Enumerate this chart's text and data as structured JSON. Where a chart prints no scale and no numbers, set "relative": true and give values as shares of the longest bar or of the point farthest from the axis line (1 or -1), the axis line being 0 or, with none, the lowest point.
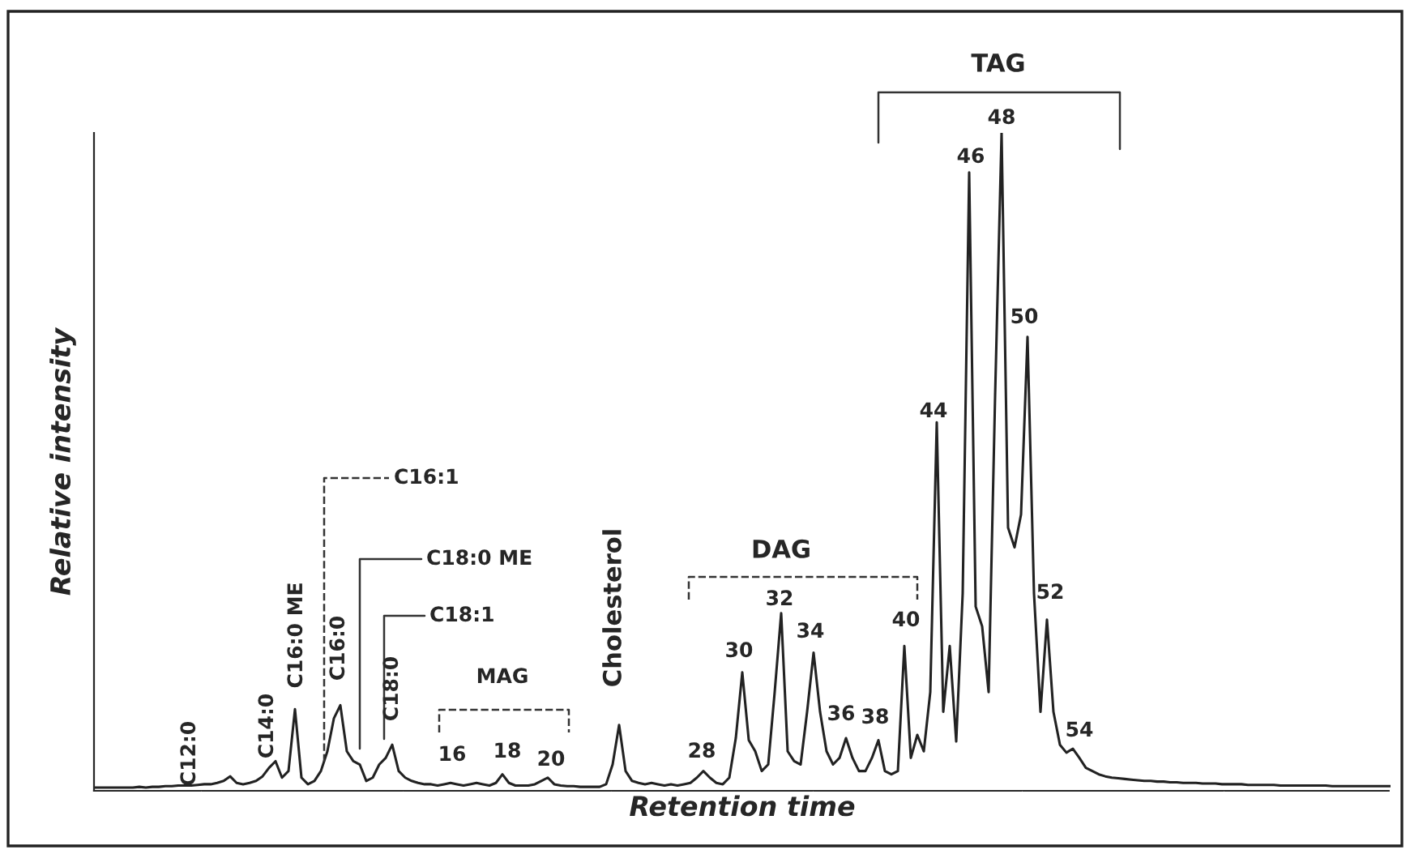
{
  "chart_data": {
    "type": "line",
    "relative": true,
    "xlabel": "Retention time",
    "ylabel": "Relative intensity",
    "color": "#222222",
    "categories": [
      null,
      null,
      null,
      null,
      null,
      null,
      null,
      null,
      null,
      null,
      null,
      null,
      null,
      null,
      null,
      null,
      null,
      null,
      null,
      null,
      null,
      null,
      null,
      null,
      null,
      null,
      null,
      null,
      null,
      null,
      null,
      null,
      null,
      null,
      null,
      null,
      null,
      null,
      null,
      null,
      null,
      null,
      null,
      null,
      null,
      null,
      null,
      null,
      null,
      null,
      null,
      null,
      null,
      null,
      null,
      null,
      null,
      null,
      null,
      null,
      null,
      null,
      null,
      null,
      null,
      null,
      null,
      null,
      null,
      null,
      null,
      null,
      null,
      null,
      null,
      null,
      null,
      null,
      null,
      null,
      null,
      null,
      null,
      null,
      null,
      null,
      null,
      null,
      null,
      null,
      null,
      null,
      null,
      null,
      null,
      null,
      null,
      null,
      null,
      null,
      null,
      null,
      null,
      null,
      null,
      null,
      null,
      null,
      null,
      null,
      null,
      null,
      null,
      null,
      null,
      null,
      null,
      null,
      null,
      null,
      null,
      null,
      null,
      null,
      null,
      null,
      null,
      null,
      null,
      null,
      null,
      null,
      null,
      null,
      null,
      null,
      null,
      null,
      null,
      null,
      null,
      null,
      null,
      null,
      null,
      null,
      null,
      null,
      null,
      null,
      null,
      null,
      null,
      null,
      null,
      null,
      null,
      null,
      null,
      null,
      null,
      null,
      null,
      null,
      null,
      null,
      null,
      null,
      null,
      null,
      null,
      null,
      null,
      null,
      null,
      null,
      null,
      null,
      null,
      null,
      null,
      null,
      null,
      null,
      null,
      null,
      null,
      null,
      null,
      null,
      null,
      null,
      null,
      null,
      null,
      null,
      null,
      null,
      null,
      null,
      null
    ],
    "values": [
      0.005,
      0.005,
      0.005,
      0.005,
      0.005,
      0.005,
      0.005,
      0.006,
      0.005,
      0.006,
      0.006,
      0.007,
      0.007,
      0.008,
      0.008,
      0.008,
      0.009,
      0.01,
      0.01,
      0.012,
      0.015,
      0.022,
      0.012,
      0.01,
      0.012,
      0.015,
      0.022,
      0.035,
      0.045,
      0.02,
      0.03,
      0.124,
      0.02,
      0.01,
      0.015,
      0.03,
      0.06,
      0.11,
      0.13,
      0.06,
      0.045,
      0.04,
      0.015,
      0.02,
      0.04,
      0.05,
      0.07,
      0.03,
      0.02,
      0.015,
      0.012,
      0.01,
      0.01,
      0.008,
      0.01,
      0.012,
      0.01,
      0.008,
      0.01,
      0.012,
      0.01,
      0.008,
      0.012,
      0.025,
      0.012,
      0.008,
      0.008,
      0.008,
      0.01,
      0.015,
      0.02,
      0.01,
      0.008,
      0.007,
      0.007,
      0.006,
      0.006,
      0.006,
      0.006,
      0.01,
      0.04,
      0.1,
      0.03,
      0.015,
      0.012,
      0.01,
      0.012,
      0.01,
      0.008,
      0.01,
      0.008,
      0.01,
      0.012,
      0.02,
      0.03,
      0.02,
      0.012,
      0.01,
      0.02,
      0.08,
      0.18,
      0.077,
      0.06,
      0.03,
      0.04,
      0.15,
      0.27,
      0.06,
      0.045,
      0.04,
      0.12,
      0.21,
      0.12,
      0.06,
      0.04,
      0.05,
      0.08,
      0.05,
      0.03,
      0.03,
      0.05,
      0.077,
      0.03,
      0.025,
      0.03,
      0.22,
      0.05,
      0.085,
      0.06,
      0.15,
      0.56,
      0.12,
      0.22,
      0.075,
      0.3,
      0.94,
      0.28,
      0.25,
      0.15,
      0.6,
      1.0,
      0.4,
      0.37,
      0.42,
      0.69,
      0.3,
      0.12,
      0.26,
      0.12,
      0.07,
      0.058,
      0.064,
      0.05,
      0.035,
      0.03,
      0.025,
      0.022,
      0.02,
      0.019,
      0.018,
      0.017,
      0.016,
      0.015,
      0.015,
      0.014,
      0.014,
      0.013,
      0.013,
      0.012,
      0.012,
      0.012,
      0.011,
      0.011,
      0.011,
      0.01,
      0.01,
      0.01,
      0.01,
      0.009,
      0.009,
      0.009,
      0.009,
      0.009,
      0.008,
      0.008,
      0.008,
      0.008,
      0.008,
      0.008,
      0.008,
      0.008,
      0.007,
      0.007,
      0.007,
      0.007,
      0.007,
      0.007,
      0.007,
      0.007,
      0.007,
      0.007
    ],
    "annotations": [
      "C12:0",
      "C14:0",
      "C16:0 ME",
      "C16:1",
      "C16:0",
      "C18:0 ME",
      "C18:1",
      "C18:0",
      "MAG",
      "16",
      "18",
      "20",
      "Cholesterol",
      "DAG",
      "28",
      "30",
      "32",
      "34",
      "36",
      "38",
      "40",
      "TAG",
      "44",
      "46",
      "48",
      "50",
      "52",
      "54"
    ]
  }
}
